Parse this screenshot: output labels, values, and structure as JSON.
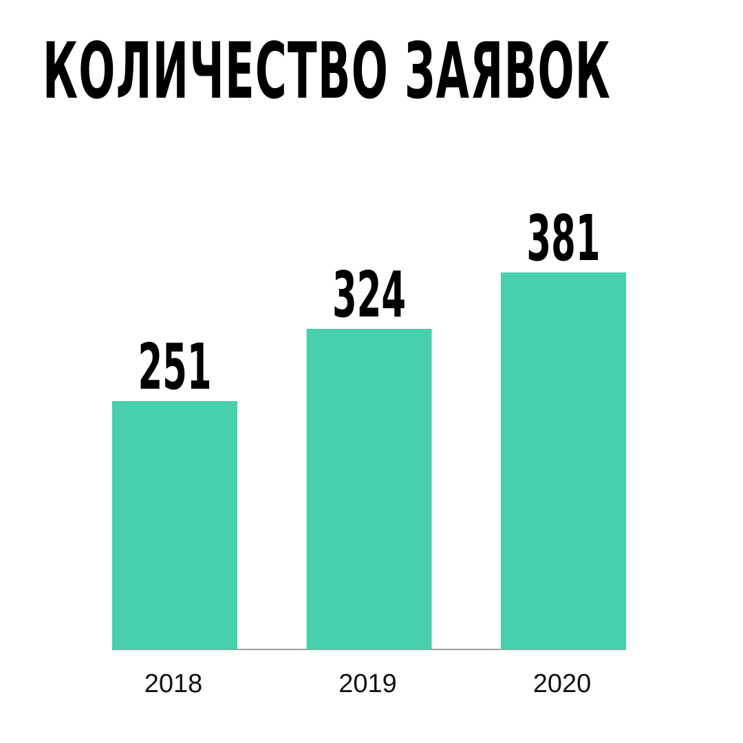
{
  "title": "КОЛИЧЕСТВО ЗАЯВОК",
  "colors": {
    "bar": "#48cfae",
    "baseline": "#9e9e9e",
    "text": "#000000"
  },
  "chart_data": {
    "type": "bar",
    "title": "КОЛИЧЕСТВО ЗАЯВОК",
    "categories": [
      "2018",
      "2019",
      "2020"
    ],
    "values": [
      251,
      324,
      381
    ],
    "data_labels": [
      "251",
      "324",
      "381"
    ],
    "xlabel": "",
    "ylabel": "",
    "ylim": [
      0,
      381
    ],
    "grid": false,
    "legend": "none"
  }
}
